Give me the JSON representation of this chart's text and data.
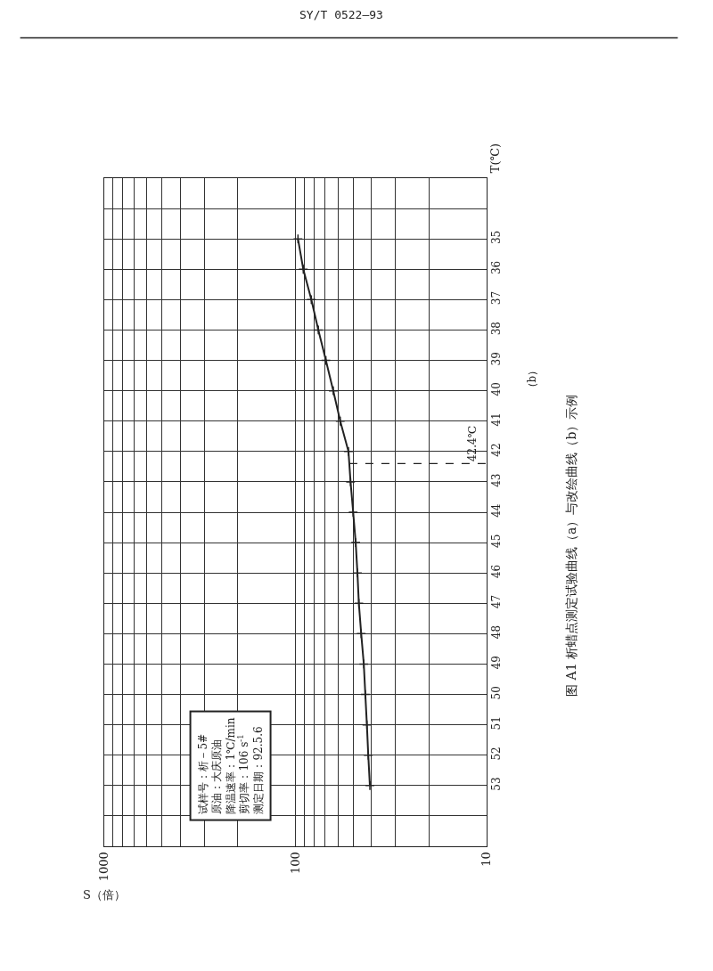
{
  "chart_data": {
    "type": "line",
    "title": "图 A1 析蜡点测定试验曲线（a）与改绘曲线（b）示例",
    "xlabel": "S（倍）",
    "ylabel": "T(℃)",
    "annotations": [
      "SY/T 0522—93",
      "（b）",
      "试样号：析－5#",
      "原油：大庆原油",
      "降温速率：1℃/min",
      "剪切率：106 s$^{-1}$",
      "测定日期：92.5.6"
    ],
    "series": [
      {
        "color": "#222222",
        "x": [
          97,
          91,
          82.6,
          75.9,
          69.3,
          63.4,
          58.3,
          52.8,
          51.5,
          49.9,
          48.4,
          47.4,
          46.6,
          45.3,
          43.9,
          43.1,
          42.3,
          41.6,
          40.8
        ],
        "values": [
          35,
          36,
          37,
          38,
          39,
          40,
          41,
          42,
          43,
          44,
          45,
          46,
          47,
          48,
          49,
          50,
          51,
          52,
          53
        ]
      }
    ],
    "log": "x",
    "xlim": [
      1000,
      10
    ],
    "xticks": [
      1000,
      {
        "value": 900,
        "label": null
      },
      {
        "value": 800,
        "label": null
      },
      {
        "value": 700,
        "label": null
      },
      {
        "value": 600,
        "label": null
      },
      {
        "value": 500,
        "label": null
      },
      {
        "value": 400,
        "label": null
      },
      {
        "value": 300,
        "label": null
      },
      {
        "value": 200,
        "label": null
      },
      100,
      {
        "value": 90,
        "label": null
      },
      {
        "value": 80,
        "label": null
      },
      {
        "value": 70,
        "label": null
      },
      {
        "value": 60,
        "label": null
      },
      {
        "value": 50,
        "label": null
      },
      {
        "value": 40,
        "label": null
      },
      {
        "value": 30,
        "label": null
      },
      {
        "value": 20,
        "label": null
      },
      10
    ],
    "ylim": [
      55,
      33
    ],
    "yticks": [
      {
        "value": 34,
        "label": null
      },
      35,
      36,
      37,
      38,
      39,
      40,
      41,
      42,
      43,
      44,
      45,
      46,
      47,
      48,
      49,
      50,
      51,
      52,
      53,
      {
        "value": 54,
        "label": null
      }
    ],
    "ref_lines": [
      {
        "axis": "y",
        "value": 42.4,
        "label": "42.4℃",
        "line_style": "dashed",
        "color": "#222222"
      }
    ],
    "marker": "cross",
    "line_style": "solid",
    "grid": true
  }
}
